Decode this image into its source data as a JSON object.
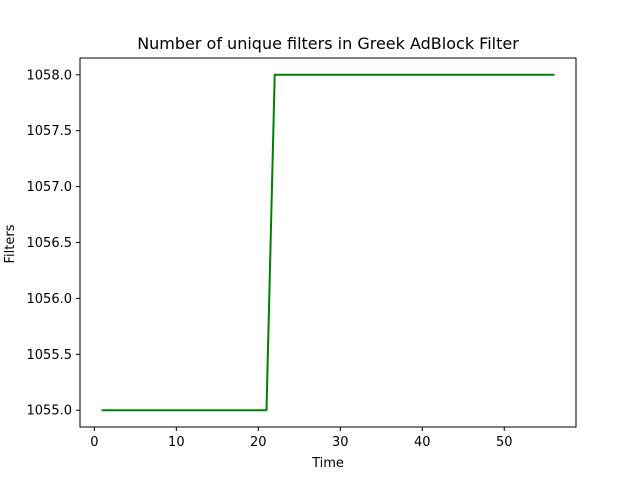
{
  "chart_data": {
    "type": "line",
    "title": "Number of unique filters in Greek AdBlock Filter",
    "xlabel": "Time",
    "ylabel": "Filters",
    "xlim": [
      -1.75,
      58.75
    ],
    "ylim": [
      1054.85,
      1058.15
    ],
    "xticks": [
      0,
      10,
      20,
      30,
      40,
      50
    ],
    "yticks": [
      1055.0,
      1055.5,
      1056.0,
      1056.5,
      1057.0,
      1057.5,
      1058.0
    ],
    "xtick_labels": [
      "0",
      "10",
      "20",
      "30",
      "40",
      "50"
    ],
    "ytick_labels": [
      "1055.0",
      "1055.5",
      "1056.0",
      "1056.5",
      "1057.0",
      "1057.5",
      "1058.0"
    ],
    "grid": false,
    "series": [
      {
        "color": "#008000",
        "x": [
          1,
          21,
          22,
          56
        ],
        "y": [
          1055,
          1055,
          1058,
          1058
        ]
      }
    ]
  }
}
